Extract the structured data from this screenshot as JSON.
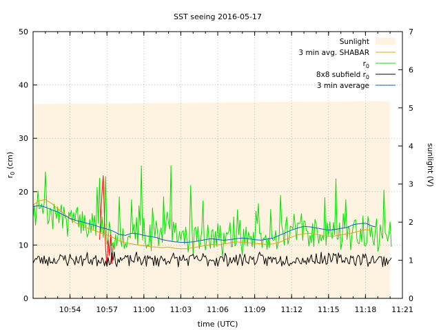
{
  "chart_data": {
    "type": "line",
    "title": "SST seeing 2016-05-17",
    "xlabel": "time (UTC)",
    "ylabel_left": "r",
    "ylabel_left_sub": "0",
    "ylabel_left_unit": " (cm)",
    "ylabel_right": "sunlight (V)",
    "x_unit": "minutes",
    "xlim": [
      "10:51",
      "11:21"
    ],
    "ylim_left": [
      0,
      50
    ],
    "ylim_right": [
      0,
      7
    ],
    "grid": true,
    "legend_position": "top-right",
    "x_ticks": [
      {
        "t": "10:54",
        "label": "10:54"
      },
      {
        "t": "10:57",
        "label": "10:57"
      },
      {
        "t": "11:00",
        "label": "11:00"
      },
      {
        "t": "11:03",
        "label": "11:03"
      },
      {
        "t": "11:06",
        "label": "11:06"
      },
      {
        "t": "11:09",
        "label": "11:09"
      },
      {
        "t": "11:12",
        "label": "11:12"
      },
      {
        "t": "11:15",
        "label": "11:15"
      },
      {
        "t": "11:18",
        "label": "11:18"
      },
      {
        "t": "11:21",
        "label": "11:21"
      }
    ],
    "y_ticks_left": [
      0,
      10,
      20,
      30,
      40,
      50
    ],
    "y_ticks_right": [
      0,
      1,
      2,
      3,
      4,
      5,
      6,
      7
    ],
    "legend": [
      {
        "label": "Sunlight",
        "sub": "",
        "color": "#fdf3e0",
        "kind": "box"
      },
      {
        "label": "3 min avg. SHABAR",
        "sub": "",
        "color": "#e8a000",
        "kind": "line"
      },
      {
        "label": "r",
        "sub": "0",
        "color": "#00e000",
        "kind": "line"
      },
      {
        "label": "8x8 subfield r",
        "sub": "0",
        "color": "#000000",
        "kind": "line"
      },
      {
        "label": "3 min average",
        "sub": "",
        "color": "#0060c0",
        "kind": "line"
      }
    ],
    "series": [
      {
        "name": "Sunlight",
        "axis": "right",
        "type": "area",
        "color": "#fdf3e0",
        "points": [
          [
            "10:51",
            5.1
          ],
          [
            "11:00",
            5.12
          ],
          [
            "11:10",
            5.15
          ],
          [
            "11:21",
            5.17
          ]
        ],
        "end": "11:20"
      },
      {
        "name": "3 min avg. SHABAR",
        "axis": "left",
        "color": "#e8a000",
        "points": [
          [
            "10:51",
            17.5
          ],
          [
            "10:51.5",
            18.3
          ],
          [
            "10:52",
            18.5
          ],
          [
            "10:52.5",
            17.8
          ],
          [
            "10:53",
            16.8
          ],
          [
            "10:53.5",
            15.9
          ],
          [
            "10:54",
            14.9
          ],
          [
            "10:54.5",
            14.1
          ],
          [
            "10:55",
            13.5
          ],
          [
            "10:55.5",
            13.1
          ],
          [
            "10:56",
            12.7
          ],
          [
            "10:56.5",
            12.3
          ],
          [
            "10:57",
            11.9
          ],
          [
            "10:57.5",
            11.4
          ],
          [
            "10:58",
            10.8
          ],
          [
            "10:58.5",
            10.4
          ],
          [
            "10:59",
            10.2
          ],
          [
            "10:59.5",
            10.0
          ],
          [
            "11:00",
            9.9
          ],
          [
            "11:00.5",
            9.7
          ],
          [
            "11:01",
            9.6
          ],
          [
            "11:01.5",
            9.5
          ],
          [
            "11:02",
            9.6
          ],
          [
            "11:02.5",
            9.4
          ],
          [
            "11:03",
            9.3
          ],
          [
            "11:03.5",
            9.3
          ],
          [
            "11:04",
            9.5
          ],
          [
            "11:04.5",
            9.7
          ],
          [
            "11:05",
            9.9
          ],
          [
            "11:05.5",
            10.1
          ],
          [
            "11:06",
            10.0
          ],
          [
            "11:06.5",
            10.2
          ],
          [
            "11:07",
            10.4
          ],
          [
            "11:07.5",
            10.6
          ],
          [
            "11:08",
            10.5
          ],
          [
            "11:08.5",
            10.4
          ],
          [
            "11:09",
            10.3
          ],
          [
            "11:09.5",
            10.2
          ],
          [
            "11:10",
            10.1
          ],
          [
            "11:10.5",
            10.2
          ],
          [
            "11:11",
            10.5
          ],
          [
            "11:11.5",
            11.0
          ],
          [
            "11:12",
            11.5
          ],
          [
            "11:12.5",
            11.9
          ],
          [
            "11:13",
            12.1
          ],
          [
            "11:13.5",
            12.2
          ],
          [
            "11:14",
            12.0
          ],
          [
            "11:14.5",
            11.8
          ],
          [
            "11:15",
            11.6
          ],
          [
            "11:15.5",
            11.7
          ],
          [
            "11:16",
            11.9
          ],
          [
            "11:16.5",
            12.1
          ],
          [
            "11:17",
            12.3
          ],
          [
            "11:17.5",
            12.6
          ],
          [
            "11:18",
            12.9
          ],
          [
            "11:18.5",
            12.7
          ]
        ]
      },
      {
        "name": "r0",
        "axis": "left",
        "color": "#00e000",
        "gen": {
          "start": "10:51",
          "end": "11:20.1",
          "step_min": 0.1,
          "seed": 7,
          "base": [
            [
              0,
              17
            ],
            [
              3,
              15
            ],
            [
              6,
              12
            ],
            [
              10,
              12
            ],
            [
              15,
              11
            ],
            [
              20,
              12
            ],
            [
              24,
              13
            ],
            [
              27,
              12
            ],
            [
              29.1,
              11
            ]
          ],
          "spread": 3.5,
          "spike_prob": 0.12,
          "spike_max": 10,
          "min": 4.5
        }
      },
      {
        "name": "r0 (red segment)",
        "axis": "left",
        "color": "#ff0000",
        "points": [
          [
            "10:56.4",
            11
          ],
          [
            "10:56.6",
            20
          ],
          [
            "10:56.7",
            23
          ],
          [
            "10:56.8",
            15
          ],
          [
            "10:56.9",
            9
          ],
          [
            "10:57.0",
            6
          ],
          [
            "10:57.1",
            11
          ],
          [
            "10:57.2",
            8
          ],
          [
            "10:57.3",
            12
          ],
          [
            "10:57.4",
            6.5
          ],
          [
            "10:57.5",
            10
          ]
        ]
      },
      {
        "name": "8x8 subfield r0",
        "axis": "left",
        "color": "#000000",
        "gen": {
          "start": "10:51",
          "end": "11:20.1",
          "step_min": 0.1,
          "seed": 23,
          "base": [
            [
              0,
              7.3
            ],
            [
              29.1,
              7.3
            ]
          ],
          "spread": 1.4,
          "spike_prob": 0.0,
          "spike_max": 0,
          "min": 4.8
        }
      },
      {
        "name": "3 min average",
        "axis": "left",
        "color": "#0060c0",
        "points": [
          [
            "10:51",
            17.2
          ],
          [
            "10:51.5",
            17.4
          ],
          [
            "10:52",
            17.1
          ],
          [
            "10:52.5",
            16.6
          ],
          [
            "10:53",
            16.2
          ],
          [
            "10:53.5",
            15.6
          ],
          [
            "10:54",
            15.0
          ],
          [
            "10:54.5",
            14.6
          ],
          [
            "10:55",
            14.3
          ],
          [
            "10:55.5",
            14.0
          ],
          [
            "10:56",
            13.7
          ],
          [
            "10:56.5",
            13.3
          ],
          [
            "10:57",
            13.0
          ],
          [
            "10:57.5",
            12.6
          ],
          [
            "10:58",
            12.0
          ],
          [
            "10:58.5",
            11.8
          ],
          [
            "10:59",
            12.2
          ],
          [
            "10:59.5",
            12.1
          ],
          [
            "11:00",
            11.8
          ],
          [
            "11:00.5",
            11.6
          ],
          [
            "11:01",
            11.4
          ],
          [
            "11:01.5",
            11.0
          ],
          [
            "11:02",
            10.8
          ],
          [
            "11:02.5",
            10.6
          ],
          [
            "11:03",
            10.5
          ],
          [
            "11:03.5",
            10.5
          ],
          [
            "11:04",
            10.6
          ],
          [
            "11:04.5",
            10.8
          ],
          [
            "11:05",
            11.0
          ],
          [
            "11:05.5",
            11.2
          ],
          [
            "11:06",
            11.0
          ],
          [
            "11:06.5",
            10.9
          ],
          [
            "11:07",
            11.0
          ],
          [
            "11:07.5",
            11.2
          ],
          [
            "11:08",
            11.3
          ],
          [
            "11:08.5",
            11.2
          ],
          [
            "11:09",
            11.0
          ],
          [
            "11:09.5",
            10.9
          ],
          [
            "11:10",
            11.1
          ],
          [
            "11:10.5",
            11.3
          ],
          [
            "11:11",
            11.8
          ],
          [
            "11:11.5",
            12.3
          ],
          [
            "11:12",
            12.8
          ],
          [
            "11:12.5",
            13.2
          ],
          [
            "11:13",
            13.5
          ],
          [
            "11:13.5",
            13.4
          ],
          [
            "11:14",
            13.2
          ],
          [
            "11:14.5",
            13.0
          ],
          [
            "11:15",
            12.8
          ],
          [
            "11:15.5",
            12.9
          ],
          [
            "11:16",
            13.1
          ],
          [
            "11:16.5",
            13.3
          ],
          [
            "11:17",
            13.8
          ],
          [
            "11:17.5",
            14.0
          ],
          [
            "11:18",
            14.1
          ],
          [
            "11:18.5",
            13.6
          ],
          [
            "11:18.8",
            13.4
          ]
        ]
      }
    ]
  }
}
